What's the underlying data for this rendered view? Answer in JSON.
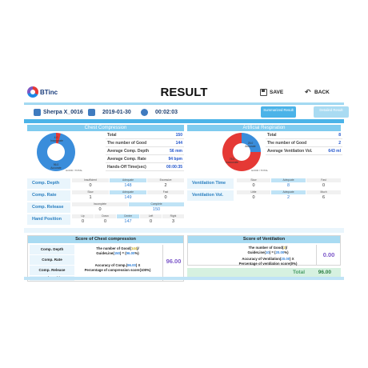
{
  "header": {
    "logo_text": "BTinc",
    "title": "RESULT",
    "save_label": "SAVE",
    "back_label": "BACK"
  },
  "info": {
    "user": "Sherpa X_0016",
    "date": "2019-01-30",
    "duration": "00:02:03"
  },
  "tabs": [
    {
      "label": "Summarized Result"
    },
    {
      "label": "Detailed Result"
    }
  ],
  "chest": {
    "title": "Chest Compression",
    "donut_good_pct": "96.0",
    "donut_good_label": "Accurate",
    "donut_bad_pct": "4.0",
    "donut_bad_label": "Inaccurate",
    "donut_caption": "GOOD / TOTAL",
    "stats": [
      {
        "label": "Total",
        "value": "150"
      },
      {
        "label": "The number of Good",
        "value": "144"
      },
      {
        "label": "Average Comp. Depth",
        "value": "56 mm"
      },
      {
        "label": "Average Comp. Rate",
        "value": "94 bpm"
      },
      {
        "label": "Hands-Off Time(sec)",
        "value": "00:00:35"
      }
    ],
    "details": [
      {
        "label": "Comp. Depth",
        "cols": [
          [
            "Insufficient",
            "0"
          ],
          [
            "Adequate",
            "148"
          ],
          [
            "Excessive",
            "2"
          ]
        ]
      },
      {
        "label": "Comp. Rate",
        "cols": [
          [
            "Slow",
            "1"
          ],
          [
            "Adequate",
            "149"
          ],
          [
            "Fast",
            "0"
          ]
        ]
      },
      {
        "label": "Comp. Release",
        "cols": [
          [
            "Incomplete",
            "0"
          ],
          [
            "Complete",
            "150"
          ]
        ]
      },
      {
        "label": "Hand Position",
        "cols": [
          [
            "Up",
            "0"
          ],
          [
            "Down",
            "0"
          ],
          [
            "Center",
            "147"
          ],
          [
            "Left",
            "0"
          ],
          [
            "Right",
            "3"
          ]
        ]
      }
    ]
  },
  "ventilation": {
    "title": "Artificial Respiration",
    "donut_good_pct": "25.0",
    "donut_good_label": "Accurate",
    "donut_bad_pct": "75.0",
    "donut_bad_label": "Inaccurate",
    "donut_caption": "GOOD / TOTAL",
    "stats": [
      {
        "label": "Total",
        "value": "8"
      },
      {
        "label": "The number of Good",
        "value": "2"
      },
      {
        "label": "Average Ventilation Vol.",
        "value": "643 ml"
      }
    ],
    "details": [
      {
        "label": "Ventilation Time",
        "cols": [
          [
            "Slow",
            "0"
          ],
          [
            "Adequate",
            "8"
          ],
          [
            "Fast",
            "0"
          ]
        ]
      },
      {
        "label": "Ventilation Vol.",
        "cols": [
          [
            "Little",
            "0"
          ],
          [
            "Adequate",
            "2"
          ],
          [
            "Much",
            "6"
          ]
        ]
      }
    ]
  },
  "score_chest": {
    "title": "Score of Chest compression",
    "labels": [
      "Comp. Depth",
      "Comp. Rate",
      "Comp. Release",
      "Hand Position"
    ],
    "formula1_a": "The number of Good(",
    "formula1_good": "144",
    "formula1_b": ")/",
    "formula1_c": "GuideLine(",
    "formula1_guide": "150",
    "formula1_d": ") = (",
    "formula1_pct": "96.00",
    "formula1_e": "%)",
    "formula2_a": "Accuracy of Comp.(",
    "formula2_acc": "96.00",
    "formula2_b": ") X",
    "formula2_c": "Percentage of compression score(100%)",
    "value": "96.00"
  },
  "score_vent": {
    "title": "Score of Ventilation",
    "formula1_a": "The number of Good(",
    "formula1_good": "2",
    "formula1_b": ")/",
    "formula1_c": "GuideLine(",
    "formula1_guide": "10",
    "formula1_d": ") = (",
    "formula1_pct": "20.00",
    "formula1_e": "%)",
    "formula2_a": "Accuracy of Ventilation(",
    "formula2_acc": "20.00",
    "formula2_b": ") X",
    "formula2_c": "Percentage of ventilation score(0%)",
    "value": "0.00"
  },
  "total": {
    "label": "Total",
    "value": "96.00"
  },
  "colors": {
    "accent": "#4bb3e8",
    "good": "#3a8ddb",
    "bad": "#e53935",
    "score": "#7c57c9"
  }
}
